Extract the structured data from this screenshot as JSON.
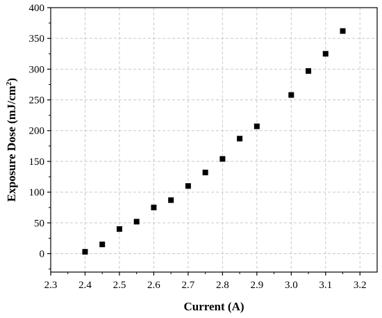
{
  "chart_data": {
    "type": "scatter",
    "title": "",
    "xlabel": "Current (A)",
    "ylabel": "Exposure Dose (mJ/cm",
    "ylabel_superscript": "2",
    "ylabel_suffix": ")",
    "xlim": [
      2.3,
      3.25
    ],
    "ylim": [
      -30,
      400
    ],
    "x_ticks": [
      2.3,
      2.4,
      2.5,
      2.6,
      2.7,
      2.8,
      2.9,
      3.0,
      3.1,
      3.2
    ],
    "x_tick_labels": [
      "2.3",
      "2.4",
      "2.5",
      "2.6",
      "2.7",
      "2.8",
      "2.9",
      "3.0",
      "3.1",
      "3.2"
    ],
    "y_ticks": [
      0,
      50,
      100,
      150,
      200,
      250,
      300,
      350,
      400
    ],
    "y_tick_labels": [
      "0",
      "50",
      "100",
      "150",
      "200",
      "250",
      "300",
      "350",
      "400"
    ],
    "grid": true,
    "marker": "square",
    "marker_color": "#000000",
    "series": [
      {
        "points": [
          {
            "x": 2.4,
            "y": 3
          },
          {
            "x": 2.45,
            "y": 15
          },
          {
            "x": 2.5,
            "y": 40
          },
          {
            "x": 2.55,
            "y": 52
          },
          {
            "x": 2.6,
            "y": 75
          },
          {
            "x": 2.65,
            "y": 87
          },
          {
            "x": 2.7,
            "y": 110
          },
          {
            "x": 2.75,
            "y": 132
          },
          {
            "x": 2.8,
            "y": 154
          },
          {
            "x": 2.85,
            "y": 187
          },
          {
            "x": 2.9,
            "y": 207
          },
          {
            "x": 3.0,
            "y": 258
          },
          {
            "x": 3.05,
            "y": 297
          },
          {
            "x": 3.1,
            "y": 325
          },
          {
            "x": 3.15,
            "y": 362
          }
        ]
      }
    ]
  }
}
